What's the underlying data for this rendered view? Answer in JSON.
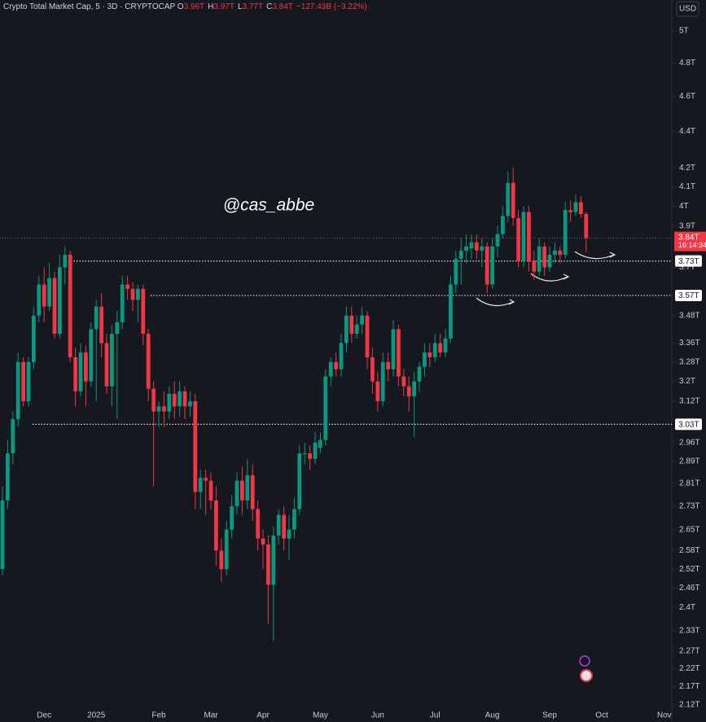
{
  "chart_data": {
    "type": "candlestick",
    "header": {
      "symbol": "Crypto Total Market Cap, 5 · 3D · CRYPTOCAP",
      "ohlc": [
        {
          "key": "O",
          "value": "3.96T"
        },
        {
          "key": "H",
          "value": "3.97T"
        },
        {
          "key": "L",
          "value": "3.77T"
        },
        {
          "key": "C",
          "value": "3.84T"
        }
      ],
      "change": "−127.43B (−3.22%)"
    },
    "currency": "USD",
    "watermark": "@cas_abbe",
    "up_color": "#089981",
    "down_color": "#f23645",
    "log_scale": true,
    "grid": false,
    "categories": [
      null,
      null,
      null,
      null,
      null,
      null,
      null,
      null,
      "Dec",
      null,
      null,
      null,
      null,
      null,
      null,
      null,
      null,
      null,
      "2025",
      null,
      null,
      null,
      null,
      null,
      null,
      null,
      null,
      null,
      null,
      null,
      "Feb",
      null,
      null,
      null,
      null,
      null,
      null,
      null,
      null,
      null,
      "Mar",
      null,
      null,
      null,
      null,
      null,
      null,
      null,
      null,
      null,
      "Apr",
      null,
      null,
      null,
      null,
      null,
      null,
      null,
      null,
      null,
      null,
      "May",
      null,
      null,
      null,
      null,
      null,
      null,
      null,
      null,
      null,
      null,
      "Jun",
      null,
      null,
      null,
      null,
      null,
      null,
      null,
      null,
      null,
      null,
      "Jul",
      null,
      null,
      null,
      null,
      null,
      null,
      null,
      null,
      null,
      null,
      "Aug",
      null,
      null,
      null,
      null,
      null,
      null,
      null,
      null,
      null,
      null,
      "Sep",
      null,
      null,
      null,
      null,
      null,
      null,
      null,
      null,
      null,
      "Oct",
      null,
      null,
      null,
      null,
      null,
      null,
      null,
      null,
      null,
      null,
      null,
      "Nov"
    ],
    "open": [
      2.52,
      2.75,
      2.92,
      3.05,
      3.28,
      3.12,
      3.28,
      3.48,
      3.62,
      3.52,
      3.65,
      3.4,
      3.7,
      3.76,
      3.3,
      3.16,
      3.32,
      3.2,
      3.42,
      3.52,
      3.36,
      3.18,
      3.4,
      3.45,
      3.62,
      3.6,
      3.55,
      3.6,
      3.4,
      3.17,
      3.08,
      3.1,
      3.08,
      3.15,
      3.1,
      3.16,
      3.1,
      3.12,
      2.78,
      2.83,
      2.82,
      2.75,
      2.58,
      2.52,
      2.65,
      2.73,
      2.82,
      2.75,
      2.84,
      2.72,
      2.62,
      2.6,
      2.47,
      2.63,
      2.7,
      2.62,
      2.65,
      2.72,
      2.92,
      2.92,
      2.9,
      2.94,
      2.97,
      3.22,
      3.28,
      3.25,
      3.36,
      3.48,
      3.4,
      3.44,
      3.48,
      3.3,
      3.2,
      3.12,
      3.28,
      3.25,
      3.42,
      3.22,
      3.18,
      3.14,
      3.2,
      3.26,
      3.32,
      3.3,
      3.36,
      3.32,
      3.38,
      3.62,
      3.74,
      3.78,
      3.79,
      3.82,
      3.78,
      3.8,
      3.62,
      3.8,
      3.86,
      3.95,
      4.12,
      3.94,
      3.73,
      3.97,
      3.73,
      3.68,
      3.8,
      3.7,
      3.76,
      3.78,
      3.76,
      3.98,
      3.97,
      4.02,
      3.96,
      null,
      null,
      null,
      null,
      null,
      null,
      null,
      null,
      null,
      null,
      null,
      null,
      null,
      null,
      null
    ],
    "high": [
      2.8,
      2.97,
      3.08,
      3.32,
      3.3,
      3.3,
      3.52,
      3.66,
      3.7,
      3.72,
      3.68,
      3.76,
      3.8,
      3.78,
      3.34,
      3.36,
      3.35,
      3.45,
      3.55,
      3.58,
      3.4,
      3.44,
      3.5,
      3.66,
      3.66,
      3.63,
      3.62,
      3.62,
      3.42,
      3.2,
      3.12,
      3.16,
      3.18,
      3.2,
      3.2,
      3.18,
      3.16,
      3.15,
      2.86,
      2.86,
      2.85,
      2.8,
      2.62,
      2.68,
      2.77,
      2.85,
      2.87,
      2.9,
      2.88,
      2.75,
      2.65,
      2.63,
      2.66,
      2.72,
      2.73,
      2.7,
      2.76,
      2.95,
      2.96,
      2.95,
      3.0,
      3.0,
      3.25,
      3.3,
      3.32,
      3.4,
      3.52,
      3.52,
      3.48,
      3.52,
      3.5,
      3.34,
      3.24,
      3.32,
      3.32,
      3.46,
      3.44,
      3.25,
      3.22,
      3.24,
      3.28,
      3.36,
      3.36,
      3.4,
      3.4,
      3.42,
      3.66,
      3.78,
      3.84,
      3.86,
      3.86,
      3.86,
      3.84,
      3.82,
      3.84,
      3.9,
      4.0,
      4.18,
      4.2,
      3.98,
      4.0,
      4.0,
      3.78,
      3.84,
      3.82,
      3.8,
      3.82,
      3.8,
      4.02,
      4.03,
      4.06,
      4.05,
      3.97,
      null,
      null,
      null,
      null,
      null,
      null,
      null,
      null,
      null,
      null,
      null,
      null,
      null,
      null,
      null
    ],
    "low": [
      2.5,
      2.72,
      2.88,
      3.02,
      3.1,
      3.1,
      3.25,
      3.45,
      3.45,
      3.5,
      3.38,
      3.38,
      3.62,
      3.28,
      3.1,
      3.14,
      3.1,
      3.18,
      3.12,
      3.3,
      3.15,
      3.1,
      3.05,
      3.42,
      3.55,
      3.5,
      3.45,
      3.35,
      3.12,
      2.8,
      3.02,
      3.02,
      3.05,
      3.05,
      3.06,
      3.05,
      3.06,
      2.72,
      2.72,
      2.7,
      2.72,
      2.53,
      2.48,
      2.5,
      2.62,
      2.7,
      2.7,
      2.72,
      2.68,
      2.58,
      2.52,
      2.35,
      2.3,
      2.6,
      2.58,
      2.55,
      2.62,
      2.7,
      2.88,
      2.86,
      2.88,
      2.92,
      2.95,
      3.18,
      3.22,
      3.22,
      3.32,
      3.36,
      3.38,
      3.4,
      3.25,
      3.15,
      3.08,
      3.1,
      3.2,
      3.22,
      3.18,
      3.14,
      3.08,
      2.98,
      3.16,
      3.22,
      3.26,
      3.28,
      3.3,
      3.3,
      3.36,
      3.58,
      3.62,
      3.72,
      3.74,
      3.74,
      3.7,
      3.58,
      3.6,
      3.75,
      3.84,
      3.92,
      3.9,
      3.7,
      3.7,
      3.68,
      3.64,
      3.66,
      3.66,
      3.68,
      3.72,
      3.72,
      3.74,
      3.92,
      3.95,
      3.94,
      3.77,
      null,
      null,
      null,
      null,
      null,
      null,
      null,
      null,
      null,
      null,
      null,
      null,
      null,
      null,
      null
    ],
    "close": [
      2.75,
      2.92,
      3.05,
      3.28,
      3.12,
      3.28,
      3.48,
      3.62,
      3.52,
      3.65,
      3.4,
      3.7,
      3.76,
      3.3,
      3.16,
      3.32,
      3.2,
      3.42,
      3.52,
      3.36,
      3.18,
      3.4,
      3.45,
      3.62,
      3.6,
      3.55,
      3.6,
      3.4,
      3.17,
      3.08,
      3.1,
      3.08,
      3.15,
      3.1,
      3.16,
      3.1,
      3.12,
      2.78,
      2.83,
      2.82,
      2.75,
      2.58,
      2.52,
      2.65,
      2.73,
      2.82,
      2.75,
      2.84,
      2.72,
      2.62,
      2.6,
      2.47,
      2.63,
      2.7,
      2.62,
      2.65,
      2.72,
      2.92,
      2.92,
      2.9,
      2.96,
      2.97,
      3.22,
      3.28,
      3.25,
      3.36,
      3.48,
      3.4,
      3.44,
      3.48,
      3.3,
      3.2,
      3.12,
      3.28,
      3.25,
      3.42,
      3.22,
      3.18,
      3.14,
      3.2,
      3.26,
      3.32,
      3.3,
      3.36,
      3.32,
      3.38,
      3.62,
      3.74,
      3.78,
      3.8,
      3.82,
      3.78,
      3.8,
      3.62,
      3.8,
      3.86,
      3.95,
      4.12,
      3.94,
      3.73,
      3.97,
      3.73,
      3.68,
      3.8,
      3.7,
      3.76,
      3.78,
      3.76,
      3.98,
      3.97,
      4.02,
      3.96,
      3.84,
      null,
      null,
      null,
      null,
      null,
      null,
      null,
      null,
      null,
      null,
      null,
      null,
      null,
      null,
      null
    ],
    "ylim": [
      2.12,
      5.2
    ],
    "yticks": [
      {
        "value": 2.12,
        "label": "2.12T"
      },
      {
        "value": 2.17,
        "label": "2.17T"
      },
      {
        "value": 2.22,
        "label": "2.22T"
      },
      {
        "value": 2.27,
        "label": "2.27T"
      },
      {
        "value": 2.33,
        "label": "2.33T"
      },
      {
        "value": 2.4,
        "label": "2.4T"
      },
      {
        "value": 2.46,
        "label": "2.46T"
      },
      {
        "value": 2.52,
        "label": "2.52T"
      },
      {
        "value": 2.58,
        "label": "2.58T"
      },
      {
        "value": 2.65,
        "label": "2.65T"
      },
      {
        "value": 2.73,
        "label": "2.73T"
      },
      {
        "value": 2.81,
        "label": "2.81T"
      },
      {
        "value": 2.89,
        "label": "2.89T"
      },
      {
        "value": 2.96,
        "label": "2.96T"
      },
      {
        "value": 3.12,
        "label": "3.12T"
      },
      {
        "value": 3.2,
        "label": "3.2T"
      },
      {
        "value": 3.28,
        "label": "3.28T"
      },
      {
        "value": 3.36,
        "label": "3.36T"
      },
      {
        "value": 3.48,
        "label": "3.48T"
      },
      {
        "value": 3.7,
        "label": "3.7T"
      },
      {
        "value": 3.9,
        "label": "3.9T"
      },
      {
        "value": 4,
        "label": "4T"
      },
      {
        "value": 4.1,
        "label": "4.1T"
      },
      {
        "value": 4.2,
        "label": "4.2T"
      },
      {
        "value": 4.4,
        "label": "4.4T"
      },
      {
        "value": 4.6,
        "label": "4.6T"
      },
      {
        "value": 4.8,
        "label": "4.8T"
      },
      {
        "value": 5,
        "label": "5T"
      }
    ],
    "levels": [
      {
        "value": 3.73,
        "label": "3.73T"
      },
      {
        "value": 3.57,
        "label": "3.57T"
      },
      {
        "value": 3.03,
        "label": "3.03T"
      }
    ],
    "current_price": {
      "value": 3.84,
      "label": "3.84T",
      "countdown": "16:14:34"
    }
  }
}
